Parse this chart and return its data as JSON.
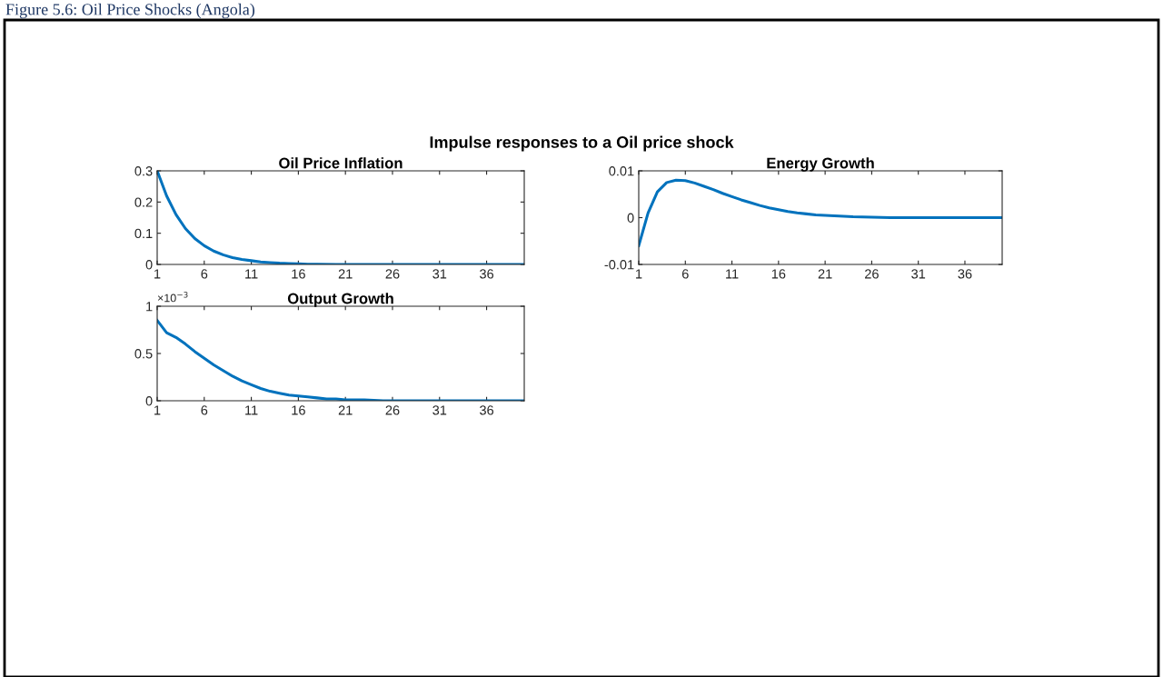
{
  "chart_data": [
    {
      "type": "line",
      "title": "Oil Price Inflation",
      "annotations": [
        "Figure 5.6: Oil Price Shocks (Angola)",
        "Impulse responses to a Oil price shock"
      ],
      "x": [
        1,
        2,
        3,
        4,
        5,
        6,
        7,
        8,
        9,
        10,
        11,
        12,
        13,
        14,
        15,
        16,
        17,
        18,
        20,
        25,
        30,
        35,
        40
      ],
      "series": [
        {
          "color": "#0072bd",
          "values": [
            0.3,
            0.22,
            0.16,
            0.115,
            0.083,
            0.06,
            0.043,
            0.031,
            0.022,
            0.016,
            0.012,
            0.008,
            0.006,
            0.004,
            0.003,
            0.002,
            0.001,
            0.001,
            0,
            0,
            0,
            0,
            0
          ]
        }
      ],
      "xlim": [
        1,
        40
      ],
      "xticks": [
        1,
        6,
        11,
        16,
        21,
        26,
        31,
        36
      ],
      "ylim": [
        0,
        0.3
      ],
      "yticks": [
        0,
        0.1,
        0.2,
        0.3
      ],
      "grid": false,
      "marker": "none",
      "line_style": "solid"
    },
    {
      "type": "line",
      "title": "Energy Growth",
      "x": [
        1,
        2,
        3,
        4,
        5,
        6,
        7,
        8,
        9,
        10,
        11,
        12,
        13,
        14,
        15,
        16,
        17,
        18,
        19,
        20,
        21,
        22,
        23,
        24,
        26,
        28,
        30,
        35,
        40
      ],
      "series": [
        {
          "color": "#0072bd",
          "values": [
            -0.006,
            0.001,
            0.0055,
            0.0075,
            0.008,
            0.0079,
            0.0074,
            0.0067,
            0.006,
            0.0052,
            0.0045,
            0.0038,
            0.0032,
            0.0026,
            0.0021,
            0.0017,
            0.0013,
            0.001,
            0.0008,
            0.0006,
            0.0005,
            0.0004,
            0.0003,
            0.0002,
            0.0001,
            0,
            0,
            0,
            0
          ]
        }
      ],
      "xlim": [
        1,
        40
      ],
      "xticks": [
        1,
        6,
        11,
        16,
        21,
        26,
        31,
        36
      ],
      "ylim": [
        -0.01,
        0.01
      ],
      "yticks": [
        -0.01,
        0,
        0.01
      ],
      "grid": false,
      "marker": "none",
      "line_style": "solid"
    },
    {
      "type": "line",
      "title": "Output Growth",
      "annotations": [
        "×10$^{−3}$"
      ],
      "x": [
        1,
        2,
        3,
        4,
        5,
        6,
        7,
        8,
        9,
        10,
        11,
        12,
        13,
        14,
        15,
        16,
        17,
        18,
        19,
        20,
        21,
        23,
        25,
        30,
        35,
        40
      ],
      "series": [
        {
          "color": "#0072bd",
          "values": [
            0.85,
            0.72,
            0.67,
            0.6,
            0.52,
            0.45,
            0.38,
            0.32,
            0.26,
            0.21,
            0.17,
            0.13,
            0.1,
            0.08,
            0.06,
            0.05,
            0.04,
            0.03,
            0.02,
            0.02,
            0.01,
            0.01,
            0,
            0,
            0,
            0
          ]
        }
      ],
      "xlim": [
        1,
        40
      ],
      "xticks": [
        1,
        6,
        11,
        16,
        21,
        26,
        31,
        36
      ],
      "ylim": [
        0,
        1
      ],
      "yticks": [
        0,
        0.5,
        1
      ],
      "grid": false,
      "marker": "none",
      "line_style": "solid"
    }
  ]
}
